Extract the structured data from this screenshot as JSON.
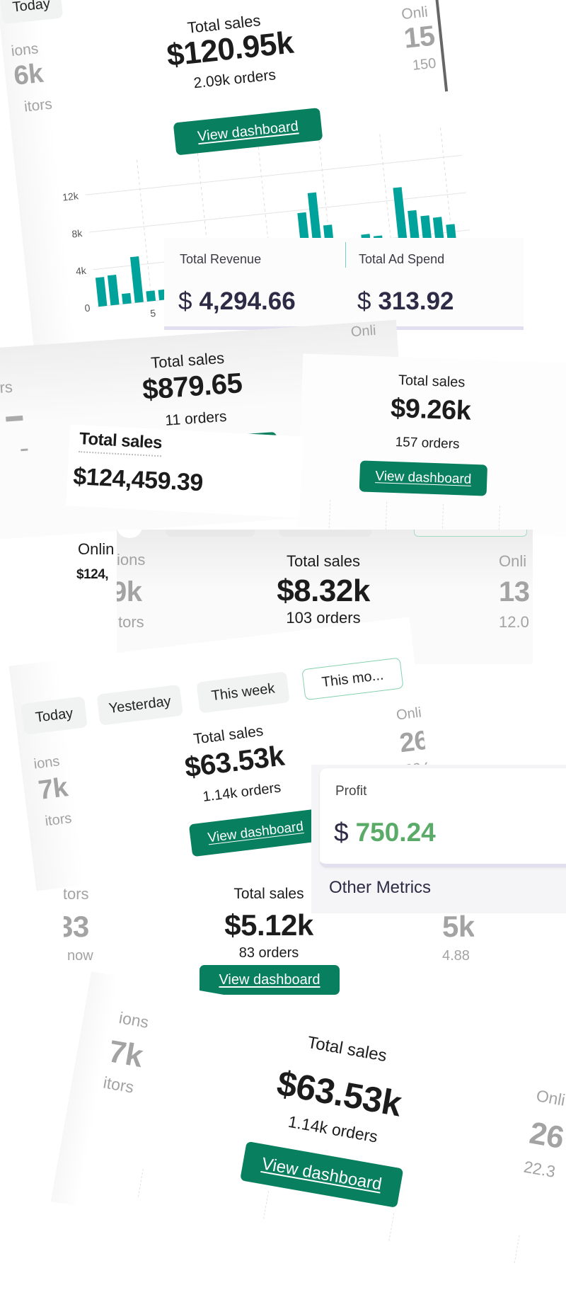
{
  "fragment_1": {
    "tab_today": "Today",
    "left_label": "ions",
    "left_value": "6k",
    "left_sub": "itors",
    "title": "Total sales",
    "amount": "$120.95k",
    "orders": "2.09k orders",
    "button": "View dashboard",
    "right_label": "Onli",
    "right_value": "15",
    "right_sub": "150"
  },
  "chart_data": {
    "type": "bar",
    "x": [
      1,
      2,
      3,
      4,
      5,
      6,
      7,
      8,
      9,
      10,
      11,
      12,
      13,
      14,
      15,
      16,
      17,
      18,
      19,
      20,
      21,
      22,
      23,
      24,
      25,
      26,
      27,
      28,
      29,
      30,
      31
    ],
    "values": [
      3100,
      3200,
      1100,
      4900,
      1100,
      1100,
      null,
      null,
      null,
      null,
      null,
      null,
      null,
      null,
      null,
      null,
      null,
      7700,
      9700,
      6100,
      null,
      3700,
      4700,
      4400,
      3400,
      9300,
      6700,
      6000,
      5700,
      4800,
      2500
    ],
    "ylim": [
      0,
      12000
    ],
    "yticks": [
      0,
      4000,
      8000,
      12000
    ],
    "ytick_labels": [
      "0",
      "4k",
      "8k",
      "12k"
    ],
    "xtick_labels": [
      "5"
    ],
    "grid": true,
    "bar_color": "#00a39b"
  },
  "ad_card": {
    "revenue_label": "Total Revenue",
    "revenue_currency": "$",
    "revenue_value": "4,294.66",
    "ad_spend_label": "Total Ad Spend",
    "ad_spend_currency": "$",
    "ad_spend_value": "313.92"
  },
  "fragment_3": {
    "left_label": "ors",
    "title": "Total sales",
    "amount": "$879.65",
    "orders": "11 orders",
    "right_label": "Onli"
  },
  "fragment_4": {
    "title": "Total sales",
    "amount": "$124,459.39"
  },
  "fragment_5": {
    "title": "Total sales",
    "amount": "$9.26k",
    "orders": "157 orders",
    "button": "View dashboard"
  },
  "fragment_4b": {
    "label": "Onlin",
    "value": "$124,"
  },
  "fragment_6": {
    "left_label": "ions",
    "left_value": "9k",
    "left_sub": "tors",
    "title": "Total sales",
    "amount": "$8.32k",
    "orders": "103 orders",
    "right_label": "Onli",
    "right_value": "13",
    "right_sub": "12.0"
  },
  "fragment_7": {
    "tabs": [
      {
        "label": "Today",
        "active": false
      },
      {
        "label": "Yesterday",
        "active": false
      },
      {
        "label": "This week",
        "active": false
      },
      {
        "label": "This mo...",
        "active": true
      }
    ],
    "left_label": "ions",
    "left_value": "7k",
    "left_sub": "itors",
    "title": "Total sales",
    "amount": "$63.53k",
    "orders": "1.14k orders",
    "button": "View dashboard",
    "right_label": "Onli",
    "right_value": "26",
    "right_sub": "22.3"
  },
  "profit_card": {
    "label": "Profit",
    "currency": "$",
    "value": "750.24",
    "value_color": "#5aab68",
    "section_title": "Other Metrics"
  },
  "fragment_9": {
    "left_label": "itors",
    "left_value": "33",
    "left_sub": "now",
    "title": "Total sales",
    "amount": "$5.12k",
    "orders": "83 orders",
    "button": "View dashboard",
    "right_value": "5k",
    "right_sub": "4.88"
  },
  "fragment_10": {
    "left_label": "ions",
    "left_value": "7k",
    "left_sub": "itors",
    "title": "Total sales",
    "amount": "$63.53k",
    "orders": "1.14k orders",
    "button": "View dashboard",
    "right_label": "Onli",
    "right_value": "26",
    "right_sub": "22.3"
  },
  "colors": {
    "primary_button": "#087f5e",
    "chart_bar": "#00a39b",
    "profit_green": "#5aab68",
    "metric_navy": "#2d2b45"
  }
}
